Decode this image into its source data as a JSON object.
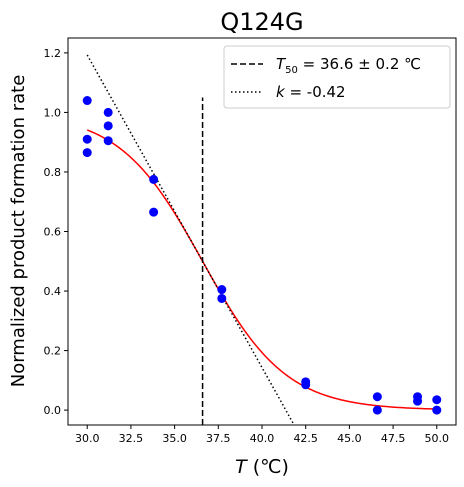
{
  "chart_data": {
    "type": "scatter",
    "title": "Q124G",
    "xlabel": {
      "var": "T",
      "unit": " (℃)"
    },
    "ylabel": "Normalized product formation rate",
    "xlim": [
      28.9,
      51.1
    ],
    "ylim": [
      -0.05,
      1.25
    ],
    "xticks": [
      30.0,
      32.5,
      35.0,
      37.5,
      40.0,
      42.5,
      45.0,
      47.5,
      50.0
    ],
    "xtick_labels": [
      "30.0",
      "32.5",
      "35.0",
      "37.5",
      "40.0",
      "42.5",
      "45.0",
      "47.5",
      "50.0"
    ],
    "yticks": [
      0.0,
      0.2,
      0.4,
      0.6,
      0.8,
      1.0,
      1.2
    ],
    "ytick_labels": [
      "0.0",
      "0.2",
      "0.4",
      "0.6",
      "0.8",
      "1.0",
      "1.2"
    ],
    "grid": false,
    "legend_position": "top-right",
    "points": {
      "color": "#0000ff",
      "x": [
        30.0,
        30.0,
        30.0,
        31.2,
        31.2,
        31.2,
        33.8,
        33.8,
        37.7,
        37.7,
        42.5,
        42.5,
        46.6,
        46.6,
        48.9,
        48.9,
        50.0,
        50.0
      ],
      "y": [
        1.04,
        0.91,
        0.865,
        1.0,
        0.955,
        0.905,
        0.775,
        0.665,
        0.405,
        0.375,
        0.095,
        0.085,
        0.045,
        0.0,
        0.045,
        0.03,
        0.035,
        0.0
      ]
    },
    "fit_curve": {
      "color": "#ff0000",
      "model": "sigmoid",
      "T50": 36.6,
      "k": -0.42,
      "y_max": 1.0,
      "x_range": [
        30.0,
        50.0
      ]
    },
    "T50_line": {
      "x": 36.6,
      "y_range": [
        -0.05,
        1.05
      ],
      "style": "dashed",
      "color": "#000000",
      "legend_label": {
        "symbol": "T",
        "subscript": "50",
        "text": " = 36.6 ± 0.2 ℃"
      }
    },
    "slope_line": {
      "x_range": [
        30.0,
        42.2
      ],
      "style": "dotted",
      "color": "#000000",
      "legend_label": {
        "symbol": "k",
        "text": " = -0.42"
      }
    }
  }
}
